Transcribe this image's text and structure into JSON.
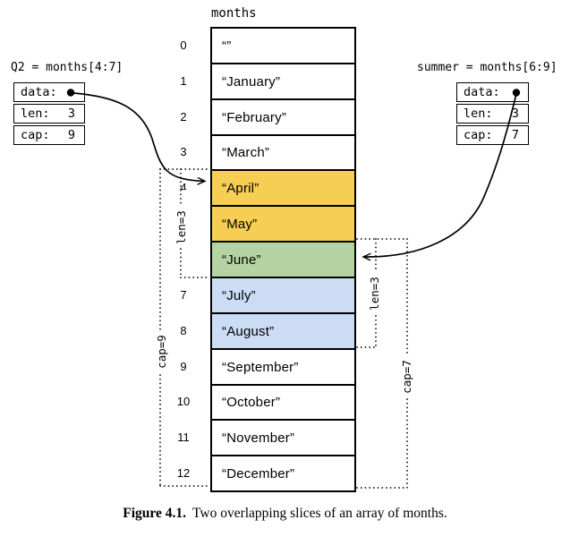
{
  "figure": {
    "array_title": "months",
    "caption_label": "Figure 4.1.",
    "caption_text": "Two overlapping slices of an array of months."
  },
  "array": {
    "cells": [
      {
        "index": "0",
        "value": "“”",
        "color": "none"
      },
      {
        "index": "1",
        "value": "“January”",
        "color": "none"
      },
      {
        "index": "2",
        "value": "“February”",
        "color": "none"
      },
      {
        "index": "3",
        "value": "“March”",
        "color": "none"
      },
      {
        "index": "4",
        "value": "“April”",
        "color": "q2"
      },
      {
        "index": "5",
        "value": "“May”",
        "color": "q2"
      },
      {
        "index": "6",
        "value": "“June”",
        "color": "overlap"
      },
      {
        "index": "7",
        "value": "“July”",
        "color": "summer"
      },
      {
        "index": "8",
        "value": "“August”",
        "color": "summer"
      },
      {
        "index": "9",
        "value": "“September”",
        "color": "none"
      },
      {
        "index": "10",
        "value": "“October”",
        "color": "none"
      },
      {
        "index": "11",
        "value": "“November”",
        "color": "none"
      },
      {
        "index": "12",
        "value": "“December”",
        "color": "none"
      }
    ]
  },
  "slices": [
    {
      "id": "q2",
      "label": "Q2 = months[4:7]",
      "fields": [
        {
          "name": "data:",
          "value": "",
          "pointer": true
        },
        {
          "name": "len:",
          "value": "3",
          "pointer": false
        },
        {
          "name": "cap:",
          "value": "9",
          "pointer": false
        }
      ]
    },
    {
      "id": "summer",
      "label": "summer = months[6:9]",
      "fields": [
        {
          "name": "data:",
          "value": "",
          "pointer": true
        },
        {
          "name": "len:",
          "value": "3",
          "pointer": false
        },
        {
          "name": "cap:",
          "value": "7",
          "pointer": false
        }
      ]
    }
  ],
  "brackets": {
    "left_len": "len=3",
    "left_cap": "cap=9",
    "right_len": "len=3",
    "right_cap": "cap=7"
  },
  "colors": {
    "q2_highlight": "#F6CE53",
    "overlap_highlight": "#B5D3A2",
    "summer_highlight": "#CBDCF4",
    "line": "#000000"
  }
}
